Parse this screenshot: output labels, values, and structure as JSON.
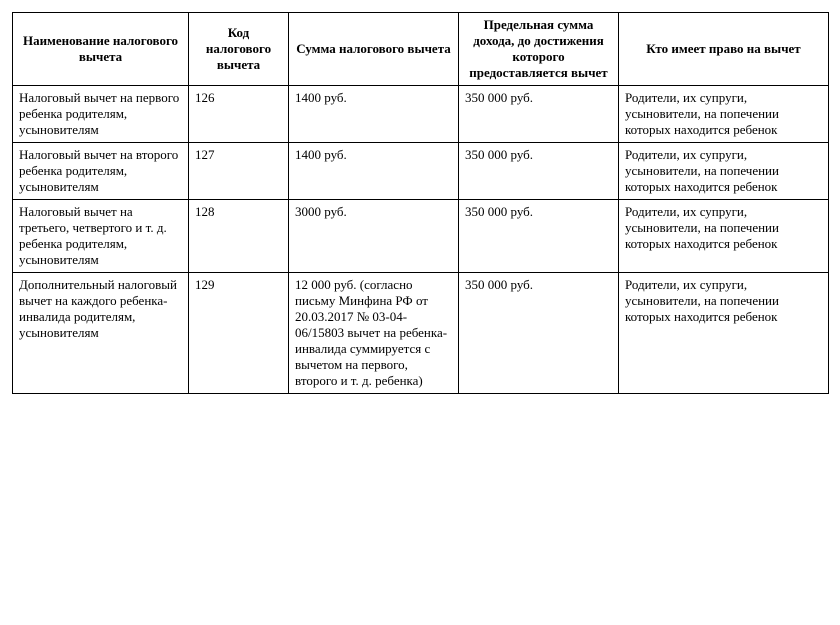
{
  "table": {
    "columns": [
      "Наименование налогового вычета",
      "Код налогового вычета",
      "Сумма налогового вычета",
      "Предельная сумма дохода, до достижения которого предоставляется вычет",
      "Кто имеет право на вычет"
    ],
    "rows": [
      [
        "Налоговый вычет на первого ребенка родителям, усыновителям",
        "126",
        "1400 руб.",
        "350 000 руб.",
        "Родители, их супруги, усыновители, на попечении которых находится ребенок"
      ],
      [
        "Налоговый вычет на второго ребенка родителям, усыновителям",
        "127",
        "1400 руб.",
        "350 000 руб.",
        "Родители, их супруги, усыновители, на попечении которых находится ребенок"
      ],
      [
        "Налоговый вычет на третьего, четвертого и т. д. ребенка родителям, усыновителям",
        "128",
        "3000 руб.",
        "350 000 руб.",
        "Родители, их супруги, усыновители, на попечении которых находится ребенок"
      ],
      [
        "Дополнительный налоговый вычет на каждого ребенка-инвалида родителям, усыновителям",
        "129",
        "12 000 руб. (согласно письму Минфина РФ от 20.03.2017 № 03-04-06/15803 вычет на ребенка-инвалида суммируется с вычетом на первого, второго и т. д. ребенка)",
        "350 000 руб.",
        "Родители, их супруги, усыновители, на попечении которых находится ребенок"
      ]
    ]
  }
}
